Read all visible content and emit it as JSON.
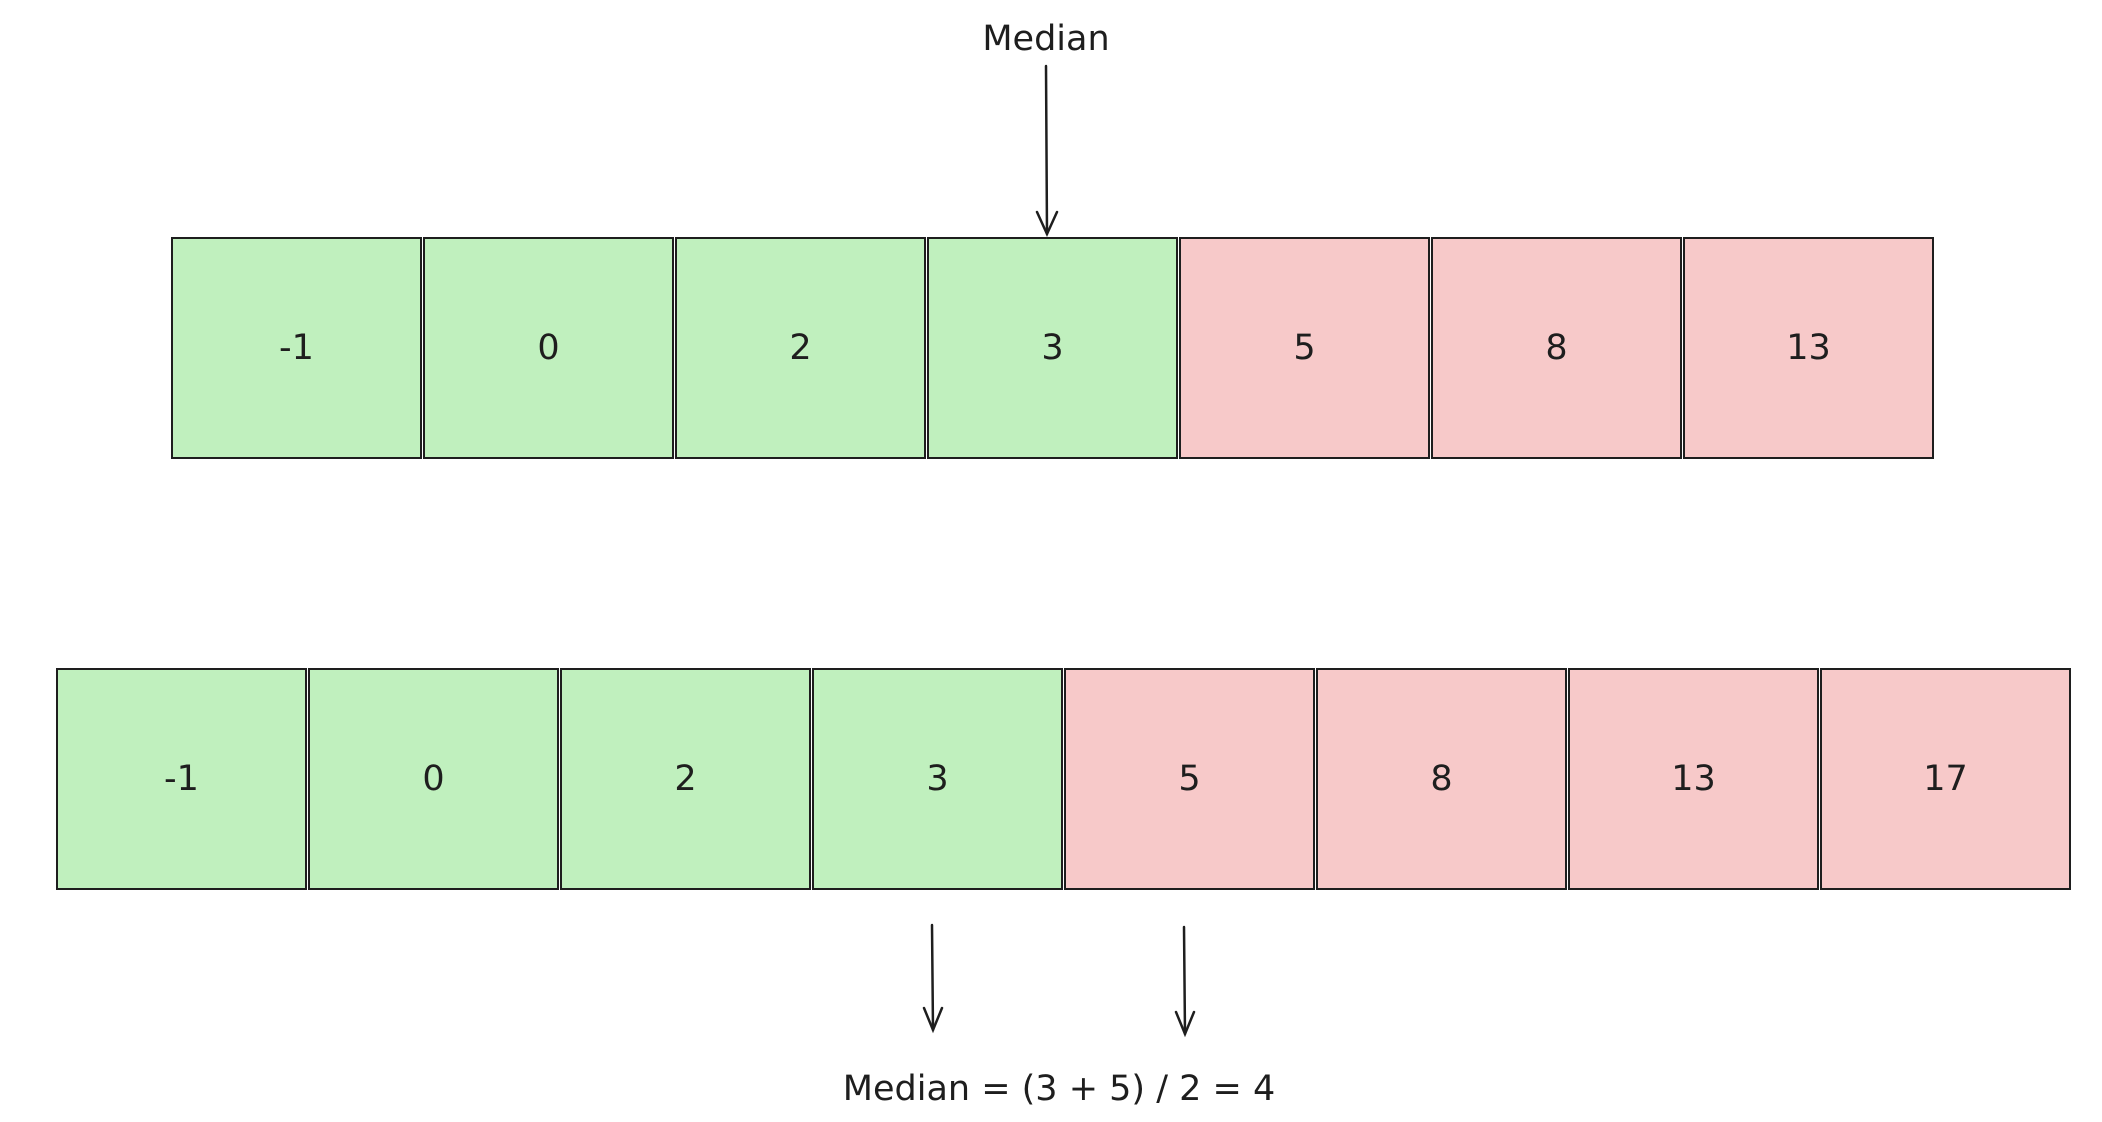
{
  "diagram": {
    "top_label": "Median",
    "row1": [
      {
        "value": "-1",
        "half": "low"
      },
      {
        "value": "0",
        "half": "low"
      },
      {
        "value": "2",
        "half": "low"
      },
      {
        "value": "3",
        "half": "low"
      },
      {
        "value": "5",
        "half": "high"
      },
      {
        "value": "8",
        "half": "high"
      },
      {
        "value": "13",
        "half": "high"
      }
    ],
    "row2": [
      {
        "value": "-1",
        "half": "low"
      },
      {
        "value": "0",
        "half": "low"
      },
      {
        "value": "2",
        "half": "low"
      },
      {
        "value": "3",
        "half": "low"
      },
      {
        "value": "5",
        "half": "high"
      },
      {
        "value": "8",
        "half": "high"
      },
      {
        "value": "13",
        "half": "high"
      },
      {
        "value": "17",
        "half": "high"
      }
    ],
    "bottom_label": "Median = (3 + 5) / 2 = 4"
  },
  "colors": {
    "low": "#c0f0be",
    "high": "#f7c9c9",
    "stroke": "#1e1e1e"
  }
}
